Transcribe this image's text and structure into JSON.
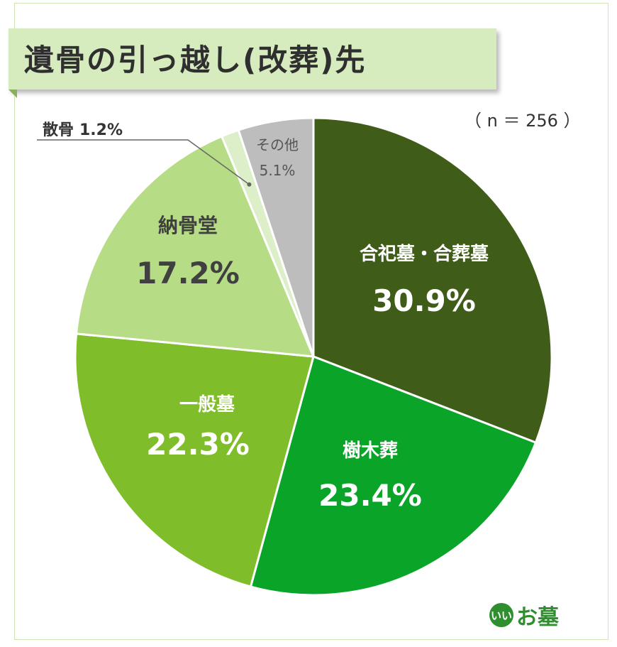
{
  "title": "遺骨の引っ越し(改葬)先",
  "sample_size": "（ n ＝ 256 ）",
  "logo": {
    "mark": "いい",
    "text": "お墓"
  },
  "colors": {
    "title_band": "#d6ebbe",
    "frame": "#cfe6b4",
    "logo_green": "#2f8f2f"
  },
  "chart_data": {
    "type": "pie",
    "start_angle": "12 o'clock",
    "direction": "clockwise",
    "unit": "%",
    "slices": [
      {
        "label": "合祀墓・合葬墓",
        "value": 30.9,
        "display": "30.9%",
        "color": "#3f5c18",
        "text_color": "#ffffff"
      },
      {
        "label": "樹木葬",
        "value": 23.4,
        "display": "23.4%",
        "color": "#0aa429",
        "text_color": "#ffffff"
      },
      {
        "label": "一般墓",
        "value": 22.3,
        "display": "22.3%",
        "color": "#80bd2b",
        "text_color": "#ffffff"
      },
      {
        "label": "納骨堂",
        "value": 17.2,
        "display": "17.2%",
        "color": "#b6dc85",
        "text_color": "#404040"
      },
      {
        "label": "散骨",
        "value": 1.2,
        "display": "1.2%",
        "color": "#dcefc8",
        "text_color": "#333333"
      },
      {
        "label": "その他",
        "value": 5.1,
        "display": "5.1%",
        "color": "#bdbdbd",
        "text_color": "#555555"
      }
    ]
  }
}
